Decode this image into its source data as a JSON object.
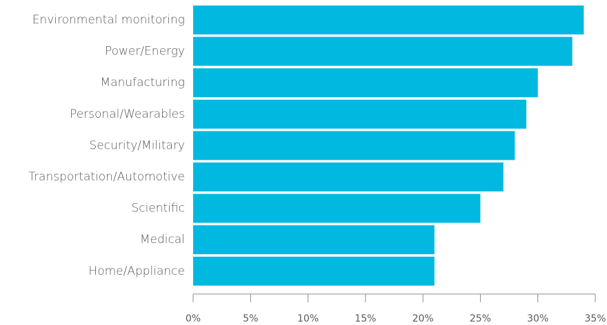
{
  "chart_data": {
    "type": "bar",
    "orientation": "horizontal",
    "title": "",
    "xlabel": "",
    "ylabel": "",
    "categories": [
      "Environmental monitoring",
      "Power/Energy",
      "Manufacturing",
      "Personal/Wearables",
      "Security/Military",
      "Transportation/Automotive",
      "Scientific",
      "Medical",
      "Home/Appliance"
    ],
    "values": [
      34,
      33,
      30,
      29,
      28,
      27,
      25,
      21,
      21
    ],
    "value_unit": "%",
    "xlim": [
      0,
      35
    ],
    "xticks": [
      0,
      5,
      10,
      15,
      20,
      25,
      30,
      35
    ],
    "xtick_labels": [
      "0%",
      "5%",
      "10%",
      "15%",
      "20%",
      "25%",
      "30%",
      "35%"
    ],
    "grid": false,
    "legend": "none",
    "bar_color": "#00b8e0"
  }
}
